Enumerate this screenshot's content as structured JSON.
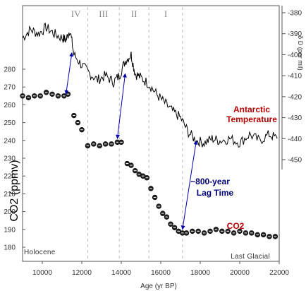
{
  "chart_data": {
    "type": "line",
    "xlabel": "Age (yr BP)",
    "xlim": [
      9000,
      22000
    ],
    "x_ticks": [
      "10000",
      "12000",
      "14000",
      "16000",
      "18000",
      "20000",
      "22000"
    ],
    "left_axis": {
      "label": "CO2 (ppmv)",
      "ylim": [
        180,
        290
      ],
      "ticks": [
        "180",
        "190",
        "200",
        "210",
        "220",
        "230",
        "240",
        "250",
        "260",
        "270",
        "280"
      ]
    },
    "right_axis": {
      "label": "δ D (per mil)",
      "ylim": [
        -450,
        -375
      ],
      "ticks": [
        "-380",
        "-390",
        "-400",
        "-410",
        "-420",
        "-430",
        "-440",
        "-450"
      ]
    },
    "periods": [
      "IV",
      "III",
      "II",
      "I"
    ],
    "period_boundaries": [
      12300,
      13900,
      15400,
      17100
    ],
    "corner_labels": {
      "left": "Holocene",
      "right": "Last Glacial"
    },
    "series": [
      {
        "name": "Antarctic Temperature",
        "axis": "right",
        "color": "#000000",
        "x": [
          9000,
          9400,
          9800,
          10200,
          10600,
          11000,
          11200,
          11400,
          11600,
          12000,
          12400,
          12800,
          13200,
          13600,
          13900,
          14200,
          14500,
          14700,
          15000,
          15400,
          15800,
          16200,
          16600,
          17000,
          17400,
          17800,
          18200,
          18600,
          19000,
          19500,
          20000,
          20500,
          21000,
          21500,
          21900
        ],
        "y": [
          -392,
          -388,
          -390,
          -387,
          -390,
          -392,
          -393,
          -388,
          -400,
          -405,
          -409,
          -412,
          -410,
          -413,
          -410,
          -403,
          -400,
          -409,
          -411,
          -414,
          -419,
          -423,
          -427,
          -430,
          -437,
          -441,
          -442,
          -440,
          -441,
          -440,
          -442,
          -438,
          -441,
          -438,
          -440
        ]
      },
      {
        "name": "CO2",
        "axis": "left",
        "color": "#000000",
        "x": [
          9000,
          9300,
          9600,
          9900,
          10200,
          10500,
          10800,
          11100,
          11300,
          11600,
          11800,
          12000,
          12300,
          12600,
          12900,
          13200,
          13500,
          13800,
          14000,
          14300,
          14500,
          14700,
          14900,
          15100,
          15300,
          15500,
          15700,
          15900,
          16100,
          16300,
          16500,
          16700,
          16900,
          17100,
          17300,
          17600,
          17900,
          18200,
          18500,
          18800,
          19100,
          19400,
          19700,
          20000,
          20300,
          20600,
          20900,
          21200,
          21500,
          21800
        ],
        "y": [
          265,
          264,
          265,
          265,
          267,
          266,
          265,
          265,
          266,
          254,
          250,
          246,
          237,
          238,
          237,
          238,
          238,
          239,
          239,
          227,
          226,
          223,
          221,
          220,
          219,
          213,
          208,
          203,
          199,
          197,
          193,
          191,
          189,
          188,
          188,
          189,
          189,
          188,
          189,
          190,
          189,
          189,
          188,
          189,
          188,
          188,
          187,
          187,
          186,
          186
        ]
      }
    ],
    "lag_arrows": [
      {
        "co2_x": 11200,
        "co2_y": 266,
        "temp_x": 11500,
        "temp_y": -399
      },
      {
        "co2_x": 13800,
        "co2_y": 241,
        "temp_x": 14200,
        "temp_y": -409
      },
      {
        "co2_x": 17100,
        "co2_y": 190,
        "temp_x": 17800,
        "temp_y": -441
      }
    ],
    "annotations": {
      "temperature": [
        "Antarctic",
        "Temperature"
      ],
      "lag": [
        "~800-year",
        "Lag Time"
      ],
      "co2": "CO2"
    },
    "colors": {
      "temperature_label": "#b40000",
      "co2_label": "#b40000",
      "lag_text": "#00007a",
      "lag_arrow": "#0000aa",
      "grid": "#bbbbbb"
    }
  }
}
